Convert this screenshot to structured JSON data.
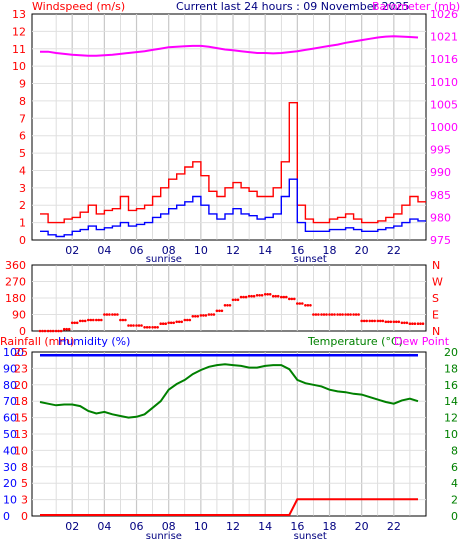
{
  "header": {
    "left_label": "Windspeed (m/s)",
    "center_label": "Current last 24 hours : 09 November 2025",
    "right_label": "Barometer (mb)"
  },
  "colors": {
    "frame": "#000000",
    "grid_v": "#c8c8c8",
    "grid_h": "#e0e0e0",
    "wind_gust": "#ff0000",
    "wind_avg": "#0000ff",
    "barometer": "#ff00ff",
    "direction": "#ff0000",
    "rain": "#ff0000",
    "humidity": "#0000ff",
    "temperature": "#008000",
    "dewpoint": "#ff00ff",
    "hour_labels": "#000080"
  },
  "chart_data": [
    {
      "type": "line",
      "name": "wind-barometer",
      "x_hours": [
        "02",
        "04",
        "06",
        "08",
        "10",
        "12",
        "14",
        "16",
        "18",
        "20",
        "22"
      ],
      "x_marks": [
        "sunrise",
        "sunset"
      ],
      "ylabel_left": "Windspeed (m/s)",
      "ylim_left": [
        0,
        13
      ],
      "yticks_left": [
        "0",
        "1",
        "2",
        "3",
        "4",
        "5",
        "6",
        "7",
        "8",
        "9",
        "10",
        "11",
        "12",
        "13"
      ],
      "ylabel_right": "Barometer (mb)",
      "ylim_right": [
        975,
        1026
      ],
      "yticks_right": [
        "975",
        "980",
        "985",
        "990",
        "995",
        "1000",
        "1005",
        "1010",
        "1016",
        "1021",
        "1026"
      ],
      "x": [
        0,
        0.5,
        1,
        1.5,
        2,
        2.5,
        3,
        3.5,
        4,
        4.5,
        5,
        5.5,
        6,
        6.5,
        7,
        7.5,
        8,
        8.5,
        9,
        9.5,
        10,
        10.5,
        11,
        11.5,
        12,
        12.5,
        13,
        13.5,
        14,
        14.5,
        15,
        15.5,
        16,
        16.5,
        17,
        17.5,
        18,
        18.5,
        19,
        19.5,
        20,
        20.5,
        21,
        21.5,
        22,
        22.5,
        23,
        23.5
      ],
      "series": [
        {
          "name": "gust",
          "axis": "left",
          "values": [
            1.5,
            1.0,
            1.0,
            1.2,
            1.3,
            1.6,
            2.0,
            1.5,
            1.7,
            1.8,
            2.5,
            1.7,
            1.8,
            2.0,
            2.5,
            3.0,
            3.5,
            3.8,
            4.2,
            4.5,
            3.7,
            2.8,
            2.5,
            3.0,
            3.3,
            3.0,
            2.8,
            2.5,
            2.5,
            3.0,
            4.5,
            7.9,
            2.0,
            1.2,
            1.0,
            1.0,
            1.2,
            1.3,
            1.5,
            1.2,
            1.0,
            1.0,
            1.1,
            1.3,
            1.5,
            2.0,
            2.5,
            2.2
          ]
        },
        {
          "name": "average",
          "axis": "left",
          "values": [
            0.5,
            0.3,
            0.2,
            0.3,
            0.5,
            0.6,
            0.8,
            0.6,
            0.7,
            0.8,
            1.0,
            0.8,
            0.9,
            1.0,
            1.3,
            1.5,
            1.8,
            2.0,
            2.2,
            2.5,
            2.0,
            1.5,
            1.2,
            1.5,
            1.8,
            1.5,
            1.4,
            1.2,
            1.3,
            1.5,
            2.5,
            3.5,
            1.0,
            0.5,
            0.5,
            0.5,
            0.6,
            0.6,
            0.7,
            0.6,
            0.5,
            0.5,
            0.6,
            0.7,
            0.8,
            1.0,
            1.2,
            1.1
          ]
        },
        {
          "name": "barometer",
          "axis": "right",
          "values": [
            1017.5,
            1017.5,
            1017.2,
            1017.0,
            1016.8,
            1016.7,
            1016.6,
            1016.6,
            1016.7,
            1016.8,
            1017.0,
            1017.2,
            1017.4,
            1017.6,
            1017.9,
            1018.2,
            1018.5,
            1018.6,
            1018.7,
            1018.8,
            1018.8,
            1018.6,
            1018.3,
            1018.0,
            1017.8,
            1017.6,
            1017.4,
            1017.2,
            1017.2,
            1017.1,
            1017.2,
            1017.4,
            1017.6,
            1017.9,
            1018.2,
            1018.5,
            1018.8,
            1019.1,
            1019.5,
            1019.8,
            1020.1,
            1020.4,
            1020.7,
            1020.9,
            1021.0,
            1020.9,
            1020.8,
            1020.7
          ]
        }
      ]
    },
    {
      "type": "scatter",
      "name": "wind-direction",
      "ylim": [
        0,
        360
      ],
      "yticks_left": [
        "0",
        "90",
        "180",
        "270",
        "360"
      ],
      "yticks_right": [
        "N",
        "E",
        "S",
        "W",
        "N"
      ],
      "yticks_extra": [
        "90",
        "180",
        "270"
      ],
      "x": [
        0,
        0.5,
        1,
        1.5,
        2,
        2.5,
        3,
        3.5,
        4,
        4.5,
        5,
        5.5,
        6,
        6.5,
        7,
        7.5,
        8,
        8.5,
        9,
        9.5,
        10,
        10.5,
        11,
        11.5,
        12,
        12.5,
        13,
        13.5,
        14,
        14.5,
        15,
        15.5,
        16,
        16.5,
        17,
        17.5,
        18,
        18.5,
        19,
        19.5,
        20,
        20.5,
        21,
        21.5,
        22,
        22.5,
        23,
        23.5
      ],
      "values": [
        0,
        0,
        0,
        10,
        45,
        55,
        60,
        60,
        90,
        90,
        60,
        30,
        30,
        20,
        20,
        40,
        45,
        50,
        60,
        80,
        85,
        90,
        110,
        140,
        170,
        185,
        190,
        195,
        200,
        190,
        185,
        175,
        150,
        140,
        90,
        90,
        90,
        90,
        90,
        90,
        55,
        55,
        55,
        50,
        50,
        45,
        40,
        40
      ]
    },
    {
      "type": "line",
      "name": "rain-humidity-temp",
      "ylabel_left_rain": "Rainfall (mm)",
      "ylabel_left_hum": "Humidity (%)",
      "ylabel_right_temp": "Temperature (°C)",
      "ylabel_right_dew": "Dew Point",
      "yticks_humidity": [
        "0",
        "10",
        "20",
        "30",
        "40",
        "50",
        "60",
        "70",
        "80",
        "90",
        "100"
      ],
      "yticks_rain": [
        "0",
        "3",
        "5",
        "8",
        "10",
        "13",
        "15",
        "18",
        "20",
        "23",
        "25"
      ],
      "yticks_temp": [
        "0",
        "2",
        "4",
        "6",
        "8",
        "10",
        "12",
        "14",
        "16",
        "18",
        "20"
      ],
      "ylim_humidity": [
        0,
        100
      ],
      "ylim_temp": [
        0,
        20
      ],
      "x": [
        0,
        0.5,
        1,
        1.5,
        2,
        2.5,
        3,
        3.5,
        4,
        4.5,
        5,
        5.5,
        6,
        6.5,
        7,
        7.5,
        8,
        8.5,
        9,
        9.5,
        10,
        10.5,
        11,
        11.5,
        12,
        12.5,
        13,
        13.5,
        14,
        14.5,
        15,
        15.5,
        16,
        16.5,
        17,
        17.5,
        18,
        18.5,
        19,
        19.5,
        20,
        20.5,
        21,
        21.5,
        22,
        22.5,
        23,
        23.5
      ],
      "series": [
        {
          "name": "humidity",
          "values": [
            98,
            98,
            98,
            98,
            98,
            98,
            98,
            98,
            98,
            98,
            98,
            98,
            98,
            98,
            98,
            98,
            98,
            98,
            98,
            98,
            98,
            98,
            98,
            98,
            98,
            98,
            98,
            98,
            98,
            98,
            98,
            98,
            98,
            98,
            98,
            98,
            98,
            98,
            98,
            98,
            98,
            98,
            98,
            98,
            98,
            98,
            98,
            98
          ]
        },
        {
          "name": "temperature",
          "values": [
            13.9,
            13.7,
            13.5,
            13.6,
            13.6,
            13.4,
            12.8,
            12.5,
            12.7,
            12.4,
            12.2,
            12.0,
            12.1,
            12.4,
            13.2,
            14.0,
            15.4,
            16.1,
            16.6,
            17.3,
            17.8,
            18.2,
            18.4,
            18.5,
            18.4,
            18.3,
            18.1,
            18.1,
            18.3,
            18.4,
            18.4,
            17.9,
            16.6,
            16.2,
            16.0,
            15.8,
            15.4,
            15.2,
            15.1,
            14.9,
            14.8,
            14.5,
            14.2,
            13.9,
            13.7,
            14.1,
            14.3,
            14.0
          ]
        },
        {
          "name": "rainfall",
          "values": [
            0,
            0,
            0,
            0,
            0,
            0,
            0,
            0,
            0,
            0,
            0,
            0,
            0,
            0,
            0,
            0,
            0,
            0,
            0,
            0,
            0,
            0,
            0,
            0,
            0,
            0,
            0,
            0,
            0,
            0,
            0,
            0,
            2.4,
            2.4,
            2.4,
            2.4,
            2.4,
            2.4,
            2.4,
            2.4,
            2.4,
            2.4,
            2.4,
            2.4,
            2.4,
            2.4,
            2.4,
            2.4
          ]
        }
      ]
    }
  ]
}
